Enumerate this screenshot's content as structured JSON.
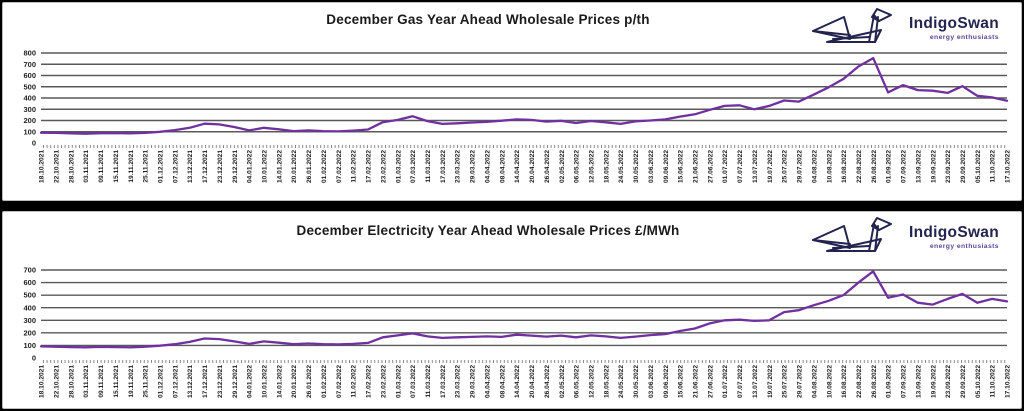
{
  "page": {
    "background_color": "#000000",
    "panel_background": "#ffffff",
    "panel_border_color": "#bdbdbd"
  },
  "logo": {
    "brand": "IndigoSwan",
    "tagline": "energy enthusiasts",
    "brand_color": "#232350",
    "tagline_color": "#5f4596",
    "swan_icon_color": "#232350"
  },
  "chart_data": [
    {
      "type": "line",
      "title": "December Gas Year Ahead Wholesale Prices p/th",
      "unit": "p/th",
      "ylim": [
        0,
        800
      ],
      "yticks": [
        0,
        100,
        200,
        300,
        400,
        500,
        600,
        700,
        800
      ],
      "grid": true,
      "legend_position": "none",
      "line_color": "#7030A0",
      "grid_color": "#595959",
      "categories": [
        "18.10.2021",
        "22.10.2021",
        "28.10.2021",
        "03.11.2021",
        "09.11.2021",
        "15.11.2021",
        "19.11.2021",
        "25.11.2021",
        "01.12.2021",
        "07.12.2021",
        "13.12.2021",
        "17.12.2021",
        "23.12.2021",
        "29.12.2021",
        "04.01.2022",
        "10.01.2022",
        "14.01.2022",
        "20.01.2022",
        "26.01.2022",
        "01.02.2022",
        "07.02.2022",
        "11.02.2022",
        "17.02.2022",
        "23.02.2022",
        "01.03.2022",
        "07.03.2022",
        "11.03.2022",
        "17.03.2022",
        "23.03.2022",
        "29.03.2022",
        "04.04.2022",
        "08.04.2022",
        "14.04.2022",
        "20.04.2022",
        "26.04.2022",
        "02.05.2022",
        "06.05.2022",
        "12.05.2022",
        "18.05.2022",
        "24.05.2022",
        "30.05.2022",
        "03.06.2022",
        "09.06.2022",
        "15.06.2022",
        "21.06.2022",
        "27.06.2022",
        "01.07.2022",
        "07.07.2022",
        "13.07.2022",
        "19.07.2022",
        "25.07.2022",
        "29.07.2022",
        "04.08.2022",
        "10.08.2022",
        "16.08.2022",
        "22.08.2022",
        "26.08.2022",
        "01.09.2022",
        "07.09.2022",
        "13.09.2022",
        "19.09.2022",
        "23.09.2022",
        "29.09.2022",
        "05.10.2022",
        "11.10.2022",
        "17.10.2022"
      ],
      "values": [
        92,
        90,
        85,
        83,
        87,
        88,
        85,
        90,
        100,
        115,
        135,
        172,
        165,
        142,
        112,
        135,
        122,
        105,
        112,
        106,
        103,
        110,
        120,
        185,
        205,
        238,
        195,
        170,
        175,
        182,
        188,
        198,
        210,
        205,
        190,
        197,
        178,
        196,
        184,
        170,
        192,
        200,
        210,
        235,
        255,
        295,
        330,
        335,
        300,
        330,
        378,
        368,
        430,
        495,
        570,
        680,
        755,
        450,
        515,
        470,
        465,
        445,
        505,
        420,
        405,
        375
      ]
    },
    {
      "type": "line",
      "title": "December Electricity Year Ahead Wholesale Prices £/MWh",
      "unit": "£/MWh",
      "ylim": [
        0,
        700
      ],
      "yticks": [
        0,
        100,
        200,
        300,
        400,
        500,
        600,
        700
      ],
      "grid": true,
      "legend_position": "none",
      "line_color": "#7030A0",
      "grid_color": "#595959",
      "categories": [
        "18.10.2021",
        "22.10.2021",
        "28.10.2021",
        "03.11.2021",
        "09.11.2021",
        "15.11.2021",
        "19.11.2021",
        "25.11.2021",
        "01.12.2021",
        "07.12.2021",
        "13.12.2021",
        "17.12.2021",
        "23.12.2021",
        "29.12.2021",
        "04.01.2022",
        "10.01.2022",
        "14.01.2022",
        "20.01.2022",
        "26.01.2022",
        "01.02.2022",
        "07.02.2022",
        "11.02.2022",
        "17.02.2022",
        "23.02.2022",
        "01.03.2022",
        "07.03.2022",
        "11.03.2022",
        "17.03.2022",
        "23.03.2022",
        "29.03.2022",
        "04.04.2022",
        "08.04.2022",
        "14.04.2022",
        "20.04.2022",
        "26.04.2022",
        "02.05.2022",
        "06.05.2022",
        "12.05.2022",
        "18.05.2022",
        "24.05.2022",
        "30.05.2022",
        "03.06.2022",
        "09.06.2022",
        "15.06.2022",
        "21.06.2022",
        "27.06.2022",
        "01.07.2022",
        "07.07.2022",
        "13.07.2022",
        "19.07.2022",
        "25.07.2022",
        "29.07.2022",
        "04.08.2022",
        "10.08.2022",
        "16.08.2022",
        "22.08.2022",
        "26.08.2022",
        "01.09.2022",
        "07.09.2022",
        "13.09.2022",
        "19.09.2022",
        "23.09.2022",
        "29.09.2022",
        "05.10.2022",
        "11.10.2022",
        "17.10.2022"
      ],
      "values": [
        92,
        90,
        87,
        85,
        88,
        87,
        85,
        90,
        98,
        110,
        128,
        155,
        150,
        132,
        112,
        132,
        122,
        110,
        115,
        110,
        108,
        112,
        120,
        165,
        180,
        196,
        172,
        160,
        165,
        168,
        172,
        168,
        185,
        178,
        170,
        178,
        165,
        180,
        172,
        160,
        170,
        182,
        190,
        215,
        235,
        275,
        300,
        305,
        295,
        300,
        365,
        380,
        420,
        455,
        500,
        600,
        690,
        480,
        505,
        440,
        425,
        470,
        510,
        440,
        470,
        450
      ]
    }
  ]
}
